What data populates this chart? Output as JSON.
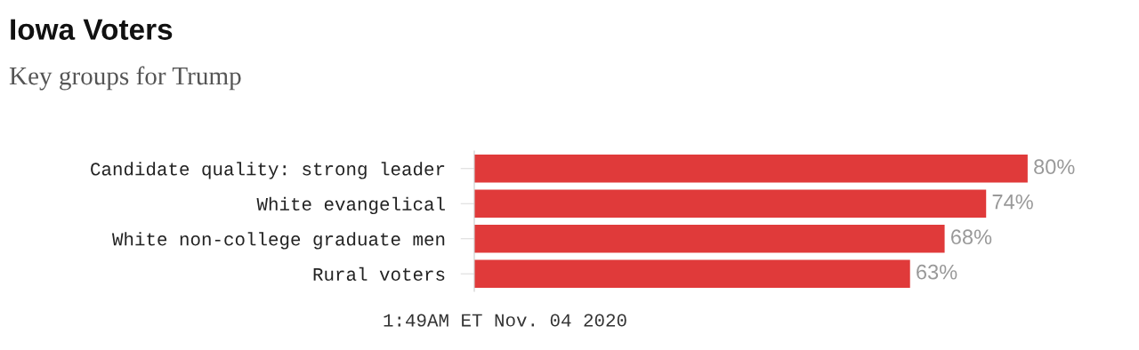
{
  "chart_data": {
    "type": "bar",
    "orientation": "horizontal",
    "title": "Iowa Voters",
    "subtitle": "Key groups for Trump",
    "categories": [
      "Candidate quality: strong leader",
      "White evangelical",
      "White non-college graduate men",
      "Rural voters"
    ],
    "series": [
      {
        "color": "#e03a3a",
        "values": [
          80,
          74,
          68,
          63
        ],
        "value_labels": [
          "80%",
          "74%",
          "68%",
          "63%"
        ]
      }
    ],
    "annotations": [
      "1:49AM ET Nov. 04 2020"
    ],
    "grid": false
  }
}
